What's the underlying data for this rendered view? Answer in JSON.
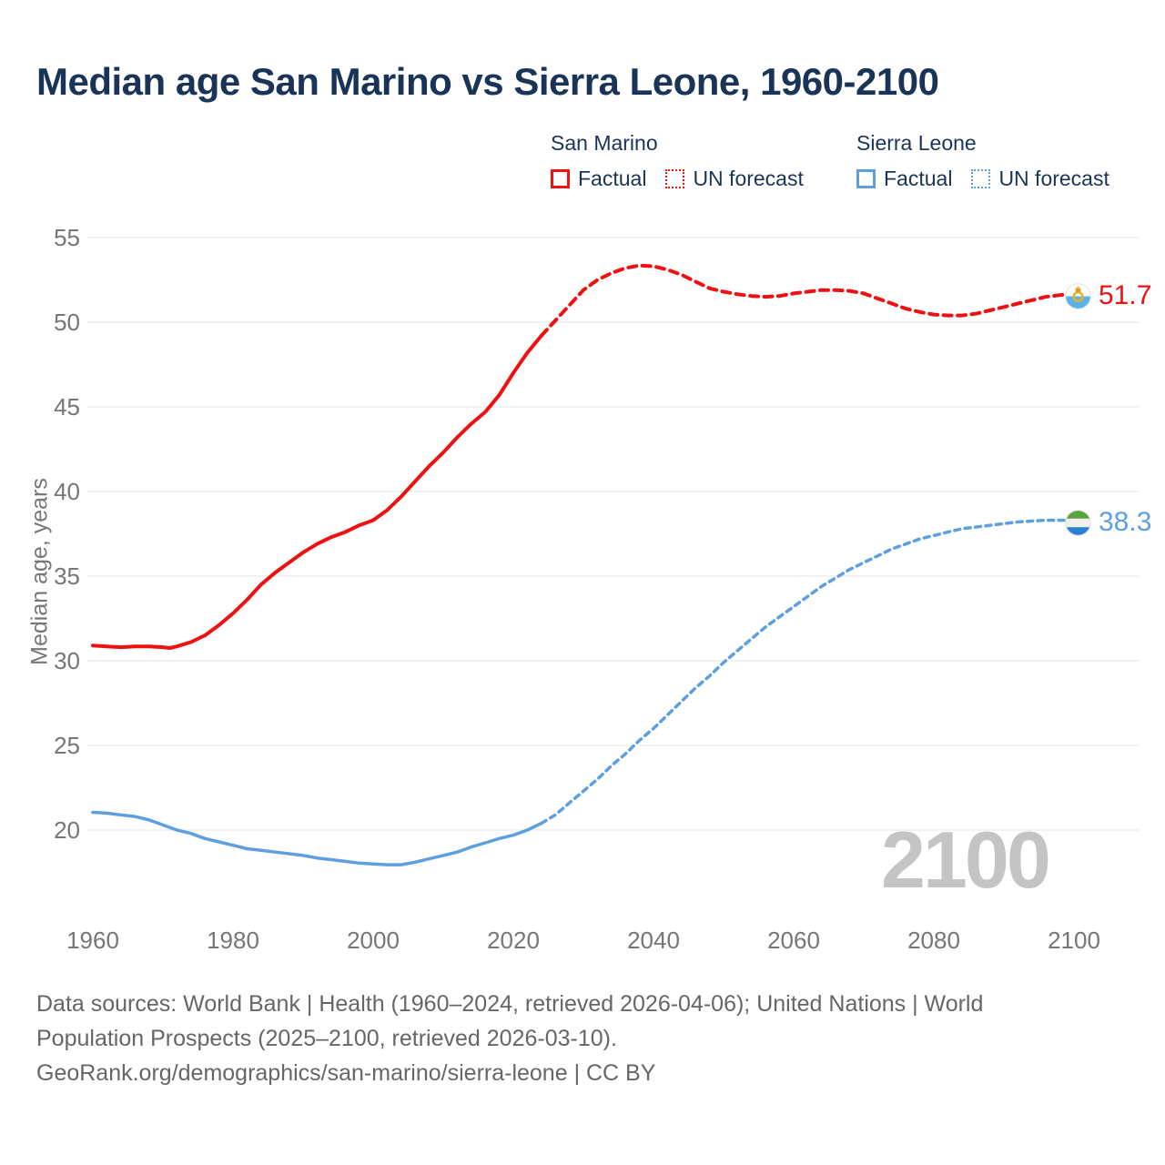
{
  "title": "Median age San Marino vs Sierra Leone, 1960-2100",
  "watermark": "2100",
  "colors": {
    "red": "#ef1111",
    "blue": "#5e9fe0",
    "navy": "#1a3457",
    "axis_text": "#767676",
    "gridline": "#e9e9e9",
    "watermark": "#c4c4c4",
    "footer_text": "#666666",
    "sm_flag_blue": "#59b3e7",
    "sm_flag_gold": "#e9b02c",
    "sl_flag_green": "#57a33c",
    "sl_flag_blue": "#2a7fd6"
  },
  "legend": {
    "san_marino": {
      "name": "San Marino",
      "factual": "Factual",
      "forecast": "UN forecast"
    },
    "sierra_leone": {
      "name": "Sierra Leone",
      "factual": "Factual",
      "forecast": "UN forecast"
    }
  },
  "end_labels": {
    "san_marino": "51.7",
    "sierra_leone": "38.3"
  },
  "footer": [
    "Data sources: World Bank | Health (1960–2024, retrieved 2026-04-06); United Nations | World",
    "Population Prospects (2025–2100, retrieved 2026-03-10).",
    "GeoRank.org/demographics/san-marino/sierra-leone | CC BY"
  ],
  "chart_data": {
    "type": "line",
    "title": "Median age San Marino vs Sierra Leone, 1960-2100",
    "xlabel": "",
    "ylabel": "Median age, years",
    "xlim": [
      1960,
      2100
    ],
    "ylim": [
      20,
      55
    ],
    "xticks": [
      1960,
      1980,
      2000,
      2020,
      2040,
      2060,
      2080,
      2100
    ],
    "yticks": [
      55,
      50,
      45,
      40,
      35,
      30,
      25,
      20
    ],
    "grid": "horizontal",
    "legend_position": "top-right",
    "series": [
      {
        "id": "san-marino-factual",
        "country": "San Marino",
        "kind": "factual",
        "label": "San Marino Factual",
        "color": "#ef1111",
        "years": [
          1960,
          1962,
          1964,
          1966,
          1968,
          1970,
          1971,
          1972,
          1974,
          1976,
          1978,
          1980,
          1982,
          1984,
          1986,
          1988,
          1990,
          1992,
          1994,
          1996,
          1998,
          2000,
          2002,
          2004,
          2006,
          2008,
          2010,
          2012,
          2014,
          2016,
          2018,
          2020,
          2022,
          2024
        ],
        "values": [
          30.9,
          30.85,
          30.8,
          30.85,
          30.85,
          30.8,
          30.75,
          30.85,
          31.1,
          31.5,
          32.1,
          32.8,
          33.6,
          34.5,
          35.2,
          35.8,
          36.4,
          36.9,
          37.3,
          37.6,
          38.0,
          38.3,
          38.9,
          39.7,
          40.6,
          41.5,
          42.3,
          43.2,
          44.0,
          44.7,
          45.7,
          47.0,
          48.2,
          49.2
        ]
      },
      {
        "id": "san-marino-forecast",
        "country": "San Marino",
        "kind": "forecast",
        "label": "San Marino UN forecast",
        "color": "#ef1111",
        "years": [
          2024,
          2026,
          2028,
          2030,
          2032,
          2034,
          2036,
          2038,
          2040,
          2042,
          2044,
          2046,
          2048,
          2050,
          2052,
          2054,
          2056,
          2058,
          2060,
          2062,
          2064,
          2066,
          2068,
          2070,
          2072,
          2074,
          2076,
          2078,
          2080,
          2082,
          2084,
          2086,
          2088,
          2090,
          2092,
          2094,
          2096,
          2098,
          2100
        ],
        "values": [
          49.2,
          50.1,
          51.0,
          51.9,
          52.5,
          52.9,
          53.2,
          53.35,
          53.3,
          53.1,
          52.8,
          52.4,
          52.0,
          51.8,
          51.65,
          51.55,
          51.5,
          51.55,
          51.7,
          51.8,
          51.9,
          51.9,
          51.85,
          51.7,
          51.4,
          51.1,
          50.8,
          50.6,
          50.45,
          50.4,
          50.4,
          50.5,
          50.7,
          50.9,
          51.1,
          51.3,
          51.5,
          51.6,
          51.7
        ]
      },
      {
        "id": "sierra-leone-factual",
        "country": "Sierra Leone",
        "kind": "factual",
        "label": "Sierra Leone Factual",
        "color": "#5e9fe0",
        "years": [
          1960,
          1962,
          1964,
          1966,
          1968,
          1970,
          1972,
          1974,
          1976,
          1978,
          1980,
          1982,
          1984,
          1986,
          1988,
          1990,
          1992,
          1994,
          1996,
          1998,
          2000,
          2002,
          2004,
          2006,
          2008,
          2010,
          2012,
          2014,
          2016,
          2018,
          2020,
          2022,
          2024
        ],
        "values": [
          21.05,
          21.0,
          20.9,
          20.8,
          20.6,
          20.3,
          20.0,
          19.8,
          19.5,
          19.3,
          19.1,
          18.9,
          18.8,
          18.7,
          18.6,
          18.5,
          18.35,
          18.25,
          18.15,
          18.05,
          18.0,
          17.95,
          17.95,
          18.1,
          18.3,
          18.5,
          18.7,
          19.0,
          19.25,
          19.5,
          19.7,
          20.0,
          20.4
        ]
      },
      {
        "id": "sierra-leone-forecast",
        "country": "Sierra Leone",
        "kind": "forecast",
        "label": "Sierra Leone UN forecast",
        "color": "#5e9fe0",
        "years": [
          2024,
          2026,
          2028,
          2030,
          2032,
          2034,
          2036,
          2038,
          2040,
          2042,
          2044,
          2046,
          2048,
          2050,
          2052,
          2054,
          2056,
          2058,
          2060,
          2062,
          2064,
          2066,
          2068,
          2070,
          2072,
          2074,
          2076,
          2078,
          2080,
          2082,
          2084,
          2086,
          2088,
          2090,
          2092,
          2094,
          2096,
          2098,
          2100
        ],
        "values": [
          20.4,
          20.9,
          21.6,
          22.3,
          23.0,
          23.8,
          24.5,
          25.3,
          26.0,
          26.8,
          27.6,
          28.4,
          29.1,
          29.9,
          30.6,
          31.3,
          32.0,
          32.6,
          33.2,
          33.8,
          34.4,
          34.9,
          35.4,
          35.8,
          36.2,
          36.6,
          36.9,
          37.2,
          37.4,
          37.6,
          37.8,
          37.9,
          38.0,
          38.1,
          38.2,
          38.25,
          38.3,
          38.3,
          38.3
        ]
      }
    ],
    "end_annotations": [
      {
        "series": "san-marino-forecast",
        "year": 2100,
        "value": 51.7,
        "flag": "san-marino"
      },
      {
        "series": "sierra-leone-forecast",
        "year": 2100,
        "value": 38.3,
        "flag": "sierra-leone"
      }
    ]
  }
}
